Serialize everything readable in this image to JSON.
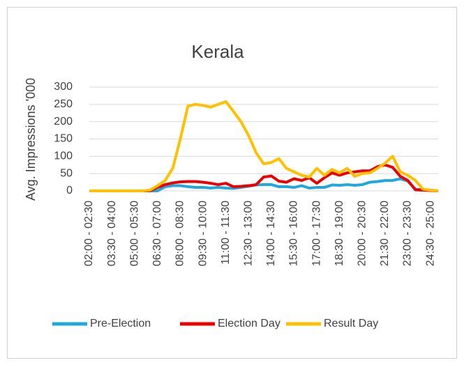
{
  "chart_data": {
    "type": "line",
    "title": "Kerala",
    "ylabel": "Avg. Impressions '000",
    "categories": [
      "02:00 - 02:30",
      null,
      null,
      "03:30 - 04:00",
      null,
      null,
      "05:00 - 05:30",
      null,
      null,
      "06:30 - 07:00",
      null,
      null,
      "08:00 - 08:30",
      null,
      null,
      "09:30 - 10:00",
      null,
      null,
      "11:00 - 11:30",
      null,
      null,
      "12:30 - 13:00",
      null,
      null,
      "14:00 - 14:30",
      null,
      null,
      "15:30 - 16:00",
      null,
      null,
      "17:00 - 17:30",
      null,
      null,
      "18:30 - 19:00",
      null,
      null,
      "20:00 - 20:30",
      null,
      null,
      "21:30 - 22:00",
      null,
      null,
      "23:00 - 23:30",
      null,
      null,
      "24:30 - 25:00",
      null
    ],
    "series": [
      {
        "name": "Pre-Election",
        "color": "#1fa8e0",
        "values": [
          0,
          0,
          0,
          0,
          0,
          0,
          0,
          0,
          0,
          0,
          12,
          15,
          15,
          12,
          10,
          10,
          8,
          10,
          8,
          7,
          10,
          13,
          17,
          18,
          18,
          12,
          12,
          10,
          15,
          8,
          10,
          10,
          17,
          16,
          18,
          16,
          18,
          25,
          27,
          30,
          30,
          35,
          28,
          5,
          3,
          2,
          0
        ]
      },
      {
        "name": "Election Day",
        "color": "#ee0000",
        "values": [
          0,
          0,
          0,
          0,
          0,
          0,
          0,
          0,
          0,
          10,
          18,
          23,
          26,
          27,
          27,
          25,
          22,
          18,
          22,
          12,
          13,
          15,
          18,
          40,
          43,
          28,
          25,
          35,
          30,
          38,
          22,
          38,
          52,
          45,
          52,
          55,
          58,
          58,
          70,
          75,
          68,
          42,
          30,
          3,
          2,
          1,
          0
        ]
      },
      {
        "name": "Result Day",
        "color": "#ffc000",
        "values": [
          0,
          0,
          0,
          0,
          0,
          0,
          0,
          0,
          2,
          15,
          30,
          65,
          150,
          245,
          250,
          247,
          242,
          250,
          258,
          230,
          200,
          160,
          110,
          78,
          82,
          93,
          65,
          55,
          45,
          40,
          65,
          45,
          62,
          52,
          65,
          42,
          50,
          52,
          65,
          80,
          100,
          55,
          45,
          30,
          5,
          2,
          0
        ]
      }
    ],
    "ylim": [
      0,
      300
    ],
    "yticks": [
      0,
      50,
      100,
      150,
      200,
      250,
      300
    ],
    "grid": true,
    "legend": "bottom"
  }
}
